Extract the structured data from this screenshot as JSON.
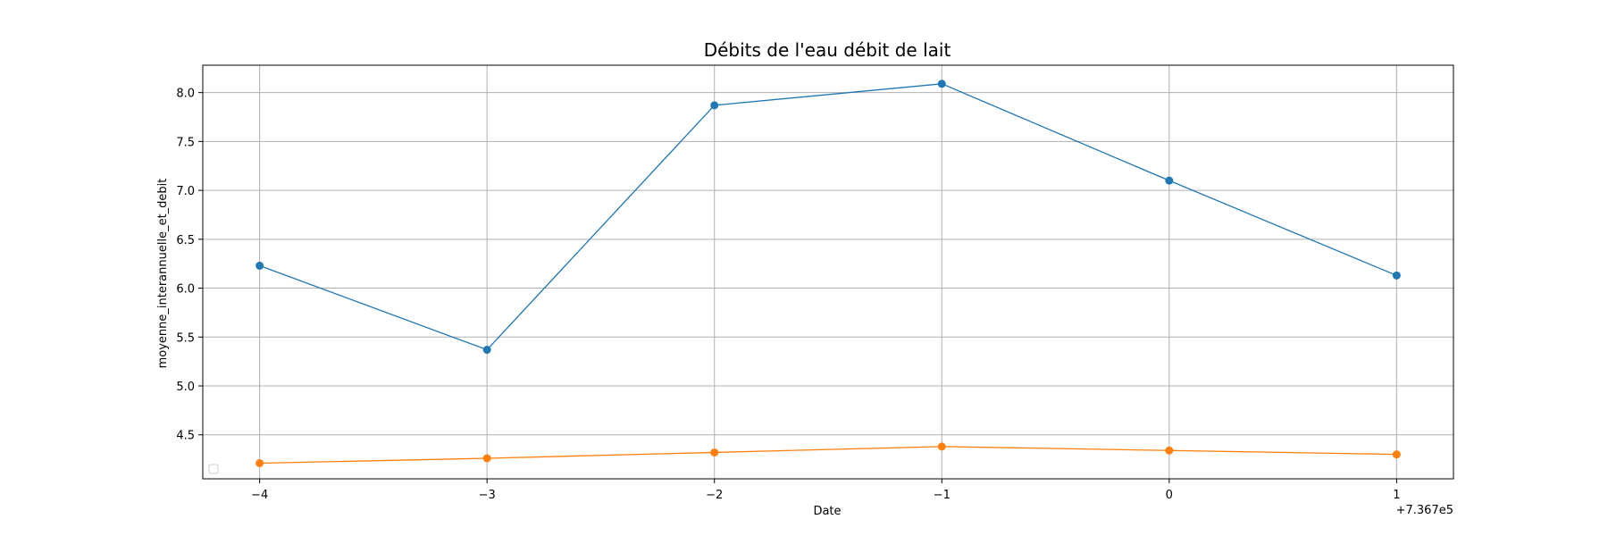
{
  "chart_data": {
    "type": "line",
    "title": "Débits de l'eau débit de lait",
    "xlabel": "Date",
    "ylabel": "moyenne_interannuelle_et_debit",
    "x_offset_label": "+7.367e5",
    "x": [
      -4,
      -3,
      -2,
      -1,
      0,
      1
    ],
    "x_tick_labels": [
      "−4",
      "−3",
      "−2",
      "−1",
      "0",
      "1"
    ],
    "xlim": [
      -4.25,
      1.25
    ],
    "ylim": [
      4.05,
      8.28
    ],
    "y_ticks": [
      4.5,
      5.0,
      5.5,
      6.0,
      6.5,
      7.0,
      7.5,
      8.0
    ],
    "y_tick_labels": [
      "4.5",
      "5.0",
      "5.5",
      "6.0",
      "6.5",
      "7.0",
      "7.5",
      "8.0"
    ],
    "grid": true,
    "legend": "lower left (empty)",
    "series": [
      {
        "color": "#1f77b4",
        "values": [
          6.23,
          5.37,
          7.87,
          8.09,
          7.1,
          6.13
        ]
      },
      {
        "color": "#ff7f0e",
        "values": [
          4.21,
          4.26,
          4.32,
          4.38,
          4.34,
          4.3
        ]
      }
    ]
  }
}
